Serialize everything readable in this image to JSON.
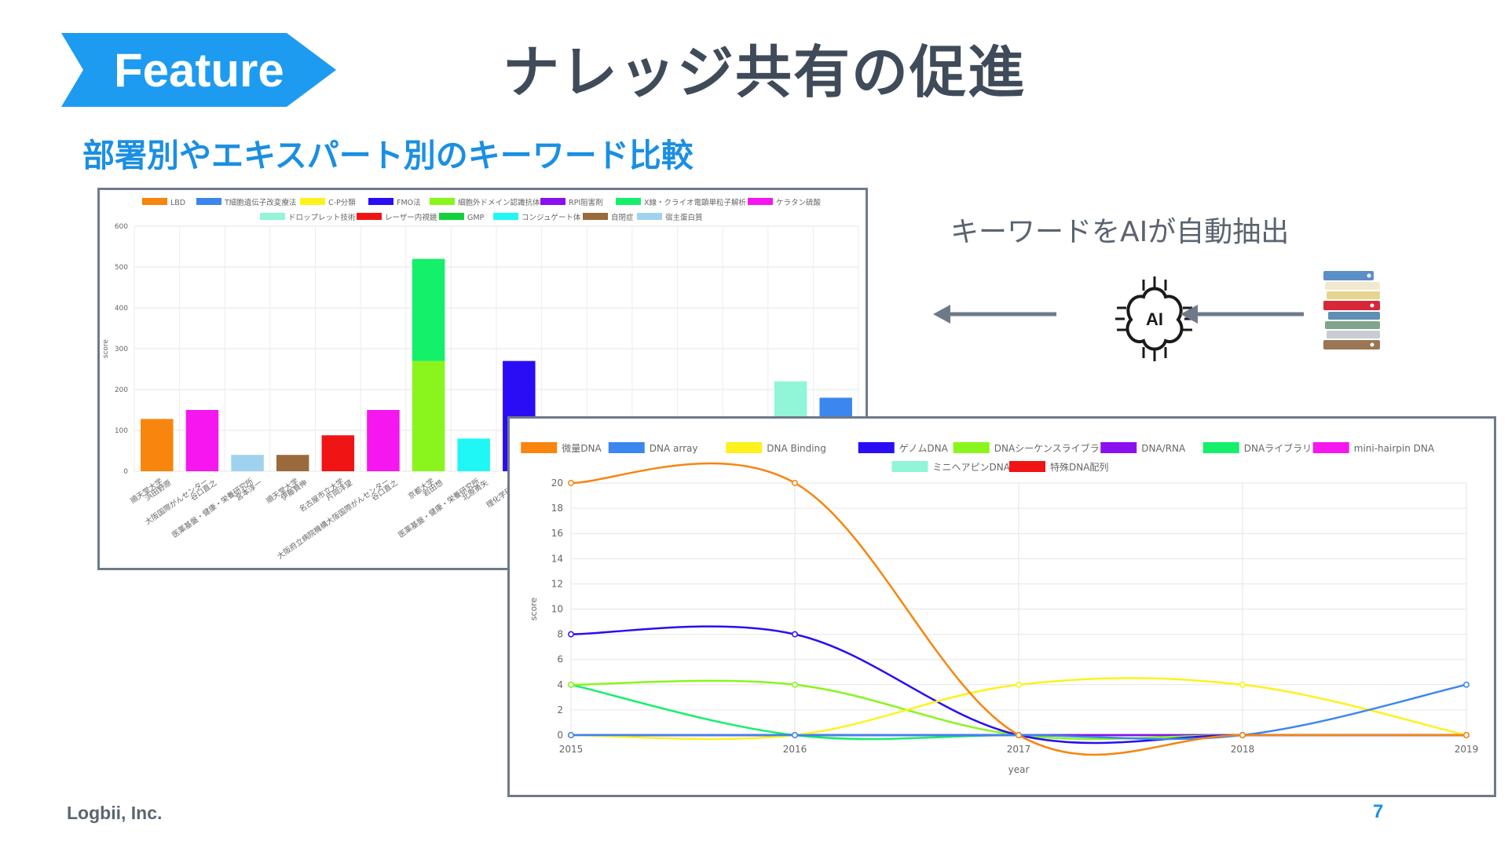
{
  "header": {
    "badge": "Feature",
    "title": "ナレッジ共有の促進",
    "subtitle": "部署別やエキスパート別のキーワード比較"
  },
  "flow": {
    "caption": "キーワードをAIが自動抽出",
    "ai_label": "AI",
    "arrow_color": "#6e7a8a"
  },
  "footer": {
    "company": "Logbii, Inc.",
    "page_number": "7"
  },
  "colors": {
    "accent": "#1d9bf0",
    "title": "#404b5a"
  },
  "chart_data": [
    {
      "type": "bar",
      "stacked": true,
      "ylabel": "score",
      "ylim": [
        0,
        600
      ],
      "yticks": [
        0,
        100,
        200,
        300,
        400,
        500,
        600
      ],
      "legend_position": "top",
      "series": [
        {
          "name": "LBD",
          "color": "#f7850e"
        },
        {
          "name": "T細胞遺伝子改変療法",
          "color": "#3b87ef"
        },
        {
          "name": "C-P分類",
          "color": "#fdf21d"
        },
        {
          "name": "FMO法",
          "color": "#2a0df5"
        },
        {
          "name": "細胞外ドメイン認識抗体",
          "color": "#8af51d"
        },
        {
          "name": "RPI阻害剤",
          "color": "#8a10f0"
        },
        {
          "name": "X線・クライオ電顕単粒子解析",
          "color": "#14f06a"
        },
        {
          "name": "ケラタン硫酸",
          "color": "#f516f0"
        },
        {
          "name": "ドロップレット技術",
          "color": "#91f5d8"
        },
        {
          "name": "レーザー内視鏡",
          "color": "#f01414"
        },
        {
          "name": "GMP",
          "color": "#12d13a"
        },
        {
          "name": "コンジュゲート体",
          "color": "#1ff7f7"
        },
        {
          "name": "自閉症",
          "color": "#9a6a3c"
        },
        {
          "name": "宿主蛋白質",
          "color": "#9fd2ef"
        }
      ],
      "categories": [
        {
          "label": [
            "順天堂大学",
            "浜田野原"
          ],
          "stack": [
            {
              "series": "LBD",
              "value": 128
            }
          ]
        },
        {
          "label": [
            "大阪国際がんセンター",
            "谷口直之"
          ],
          "stack": [
            {
              "series": "ケラタン硫酸",
              "value": 150
            }
          ]
        },
        {
          "label": [
            "医薬基盤・健康・栄養研究所",
            "宮本淳一"
          ],
          "stack": [
            {
              "series": "宿主蛋白質",
              "value": 40
            }
          ]
        },
        {
          "label": [
            "順天堂大学",
            "伊藤賢伸"
          ],
          "stack": [
            {
              "series": "自閉症",
              "value": 40
            }
          ]
        },
        {
          "label": [
            "名古屋市立大学",
            "片岡洋望"
          ],
          "stack": [
            {
              "series": "レーザー内視鏡",
              "value": 88
            }
          ]
        },
        {
          "label": [
            "大阪府立病院機構大阪国際がんセンター",
            "谷口直之"
          ],
          "stack": [
            {
              "series": "ケラタン硫酸",
              "value": 150
            }
          ]
        },
        {
          "label": [
            "京都大学",
            "岩田想"
          ],
          "stack": [
            {
              "series": "細胞外ドメイン認識抗体",
              "value": 270
            },
            {
              "series": "X線・クライオ電顕単粒子解析",
              "value": 250
            }
          ]
        },
        {
          "label": [
            "医薬基盤・健康・栄養研究所",
            "北原勇矢"
          ],
          "stack": [
            {
              "series": "コンジュゲート体",
              "value": 80
            }
          ]
        },
        {
          "label": [
            "理化学研究所",
            "..."
          ],
          "stack": [
            {
              "series": "FMO法",
              "value": 270
            }
          ]
        },
        {
          "label": [
            "",
            ""
          ],
          "stack": []
        },
        {
          "label": [
            "",
            ""
          ],
          "stack": []
        },
        {
          "label": [
            "",
            ""
          ],
          "stack": []
        },
        {
          "label": [
            "",
            ""
          ],
          "stack": []
        },
        {
          "label": [
            "",
            ""
          ],
          "stack": []
        },
        {
          "label": [
            "",
            ""
          ],
          "stack": [
            {
              "series": "ドロップレット技術",
              "value": 220
            }
          ]
        },
        {
          "label": [
            "",
            ""
          ],
          "stack": [
            {
              "series": "T細胞遺伝子改変療法",
              "value": 180
            }
          ]
        }
      ]
    },
    {
      "type": "line",
      "xlabel": "year",
      "ylabel": "score",
      "x": [
        2015,
        2016,
        2017,
        2018,
        2019
      ],
      "ylim": [
        0,
        20
      ],
      "yticks": [
        0,
        2,
        4,
        6,
        8,
        10,
        12,
        14,
        16,
        18,
        20
      ],
      "legend_position": "top",
      "series": [
        {
          "name": "微量DNA",
          "color": "#f7850e",
          "values": [
            20,
            20,
            0,
            0,
            0
          ]
        },
        {
          "name": "DNA array",
          "color": "#3b87ef",
          "values": [
            0,
            0,
            0,
            0,
            4
          ]
        },
        {
          "name": "DNA Binding",
          "color": "#fdf21d",
          "values": [
            0,
            0,
            4,
            4,
            0
          ]
        },
        {
          "name": "ゲノムDNA",
          "color": "#2a0df5",
          "values": [
            8,
            8,
            0,
            0,
            0
          ]
        },
        {
          "name": "DNAシーケンスライブラリ",
          "color": "#8af51d",
          "values": [
            4,
            4,
            0,
            0,
            0
          ]
        },
        {
          "name": "DNA/RNA",
          "color": "#8a10f0",
          "values": [
            0,
            0,
            0,
            0,
            0
          ]
        },
        {
          "name": "DNAライブラリ",
          "color": "#14f06a",
          "values": [
            4,
            0,
            0,
            0,
            0
          ]
        },
        {
          "name": "mini-hairpin DNA",
          "color": "#f516f0",
          "values": [
            0,
            0,
            0,
            0,
            0
          ]
        },
        {
          "name": "ミニヘアピンDNA",
          "color": "#91f5d8",
          "values": [
            0,
            0,
            0,
            0,
            0
          ]
        },
        {
          "name": "特殊DNA配列",
          "color": "#f01414",
          "values": [
            0,
            0,
            0,
            0,
            0
          ]
        }
      ]
    }
  ]
}
